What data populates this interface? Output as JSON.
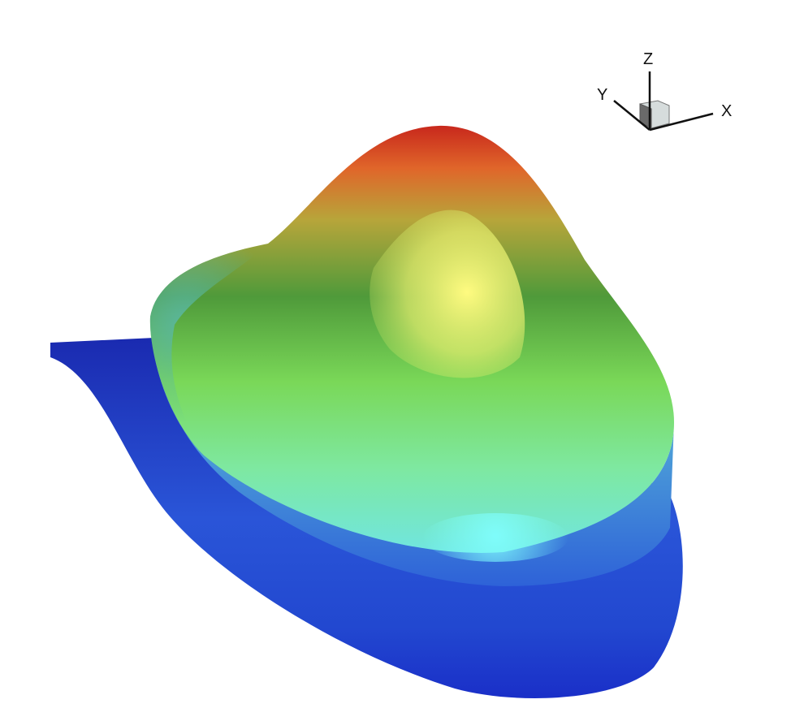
{
  "axis_triad": {
    "x_label": "X",
    "y_label": "Y",
    "z_label": "Z"
  },
  "colors": {
    "low": "#1a2fc8",
    "mid_low": "#5fd6d0",
    "mid": "#7ee85a",
    "high": "#fff36a",
    "peak": "#d8321e"
  }
}
